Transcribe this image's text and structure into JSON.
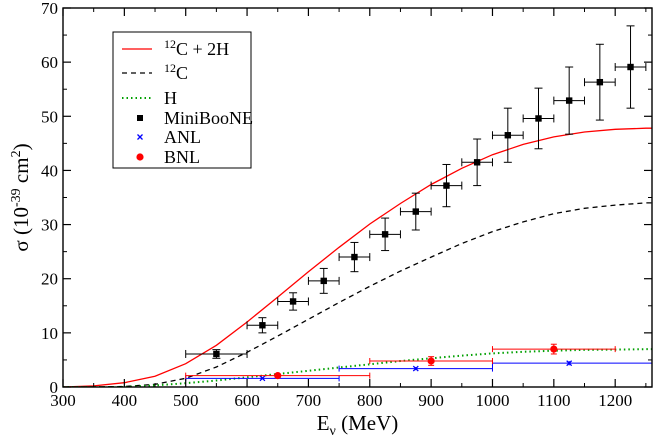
{
  "chart_data": {
    "type": "scatter",
    "title": "",
    "xlabel": {
      "main": "E",
      "sub": "ν",
      "rest": " (MeV)"
    },
    "ylabel": {
      "main": "σ (10",
      "sup": "-39",
      "mid": " cm",
      "sup2": "2",
      "end": ")"
    },
    "xlim": [
      300,
      1260
    ],
    "ylim": [
      0,
      70
    ],
    "xticks": [
      300,
      400,
      500,
      600,
      700,
      800,
      900,
      1000,
      1100,
      1200
    ],
    "yticks": [
      0,
      10,
      20,
      30,
      40,
      50,
      60,
      70
    ],
    "legend_position": "top-left",
    "legend": [
      {
        "key": "c2h",
        "label_sup": "12",
        "label": "C + 2H",
        "style": "line",
        "color": "#ff0000"
      },
      {
        "key": "c12",
        "label_sup": "12",
        "label": "C",
        "style": "dashed",
        "color": "#000000"
      },
      {
        "key": "h",
        "label_sup": "",
        "label": "H",
        "style": "dotted",
        "color": "#00a000"
      },
      {
        "key": "miniboone",
        "label_sup": "",
        "label": "MiniBooNE",
        "style": "square",
        "color": "#000000"
      },
      {
        "key": "anl",
        "label_sup": "",
        "label": "ANL",
        "style": "x",
        "color": "#0000ff"
      },
      {
        "key": "bnl",
        "label_sup": "",
        "label": "BNL",
        "style": "circle",
        "color": "#ff0000"
      }
    ],
    "curves": [
      {
        "name": "12C + 2H",
        "color": "#ff0000",
        "dash": "",
        "x": [
          300,
          350,
          400,
          450,
          500,
          550,
          600,
          650,
          700,
          750,
          800,
          850,
          900,
          950,
          1000,
          1050,
          1100,
          1150,
          1200,
          1250,
          1260
        ],
        "y": [
          0,
          0.2,
          0.8,
          2.0,
          4.3,
          7.7,
          12.0,
          16.6,
          21.3,
          25.8,
          30.1,
          33.9,
          37.4,
          40.4,
          42.9,
          44.8,
          46.2,
          47.1,
          47.6,
          47.8,
          47.8
        ]
      },
      {
        "name": "12C",
        "color": "#000000",
        "dash": "5,4",
        "x": [
          300,
          350,
          400,
          450,
          500,
          550,
          600,
          650,
          700,
          750,
          800,
          850,
          900,
          950,
          1000,
          1050,
          1100,
          1150,
          1200,
          1250,
          1260
        ],
        "y": [
          0,
          0,
          0.1,
          0.5,
          1.6,
          3.7,
          6.4,
          9.4,
          12.5,
          15.6,
          18.6,
          21.4,
          24.0,
          26.5,
          28.7,
          30.5,
          32.0,
          33.0,
          33.6,
          34.0,
          34.0
        ]
      },
      {
        "name": "H",
        "color": "#00a000",
        "dash": "1.5,3",
        "x": [
          300,
          400,
          450,
          500,
          550,
          600,
          650,
          700,
          750,
          800,
          850,
          900,
          950,
          1000,
          1050,
          1100,
          1150,
          1200,
          1260
        ],
        "y": [
          0,
          0,
          0.3,
          0.7,
          1.2,
          1.8,
          2.4,
          3.0,
          3.6,
          4.2,
          4.8,
          5.3,
          5.8,
          6.2,
          6.5,
          6.7,
          6.85,
          6.9,
          7.0
        ]
      }
    ],
    "miniboone": {
      "x": [
        550,
        625,
        675,
        725,
        775,
        825,
        875,
        925,
        975,
        1025,
        1075,
        1125,
        1175,
        1225
      ],
      "y": [
        6.1,
        11.4,
        15.8,
        19.6,
        24.0,
        28.2,
        32.4,
        37.2,
        41.5,
        46.5,
        49.6,
        52.9,
        56.3,
        59.1
      ],
      "xerr": [
        50,
        25,
        25,
        25,
        25,
        25,
        25,
        25,
        25,
        25,
        25,
        25,
        25,
        25
      ],
      "yerr": [
        0.8,
        1.4,
        1.6,
        2.3,
        2.7,
        3.0,
        3.4,
        3.9,
        4.3,
        5.0,
        5.6,
        6.2,
        7.0,
        7.6
      ]
    },
    "anl": {
      "x": [
        625,
        875,
        1125
      ],
      "y": [
        1.6,
        3.4,
        4.4
      ],
      "xmin": [
        500,
        750,
        1000
      ],
      "xmax": [
        750,
        1000,
        1260
      ],
      "yerr": [
        0.2,
        0.3,
        0.4
      ]
    },
    "bnl": {
      "x": [
        650,
        900,
        1100
      ],
      "y": [
        2.1,
        4.8,
        7.0
      ],
      "xmin": [
        500,
        800,
        1000
      ],
      "xmax": [
        800,
        1000,
        1200
      ],
      "yerr": [
        0.3,
        0.8,
        0.9
      ]
    }
  }
}
